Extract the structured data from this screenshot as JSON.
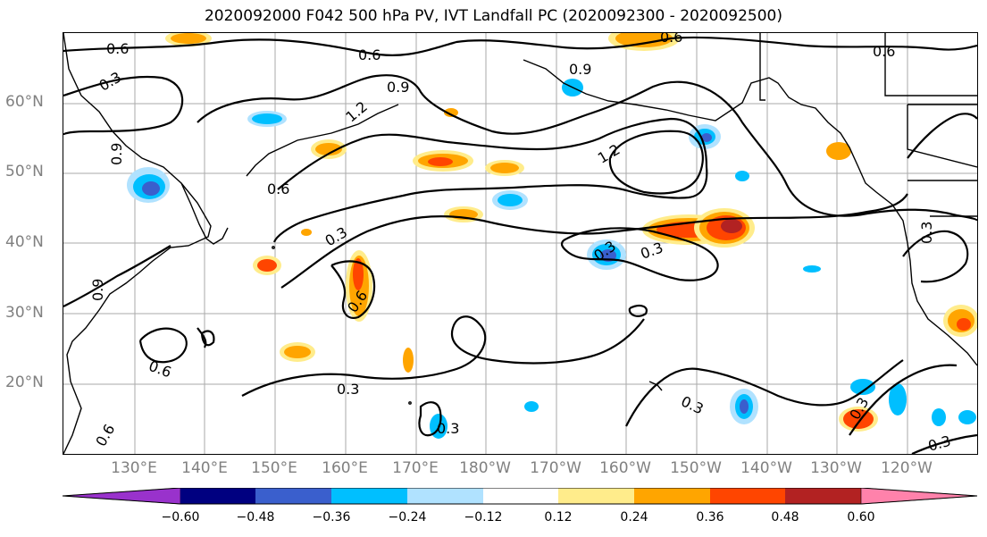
{
  "title": "2020092000 F042 500 hPa PV, IVT Landfall PC (2020092300 - 2020092500)",
  "map": {
    "lat_labels": [
      "60°N",
      "50°N",
      "40°N",
      "30°N",
      "20°N"
    ],
    "lon_labels": [
      "130°E",
      "140°E",
      "150°E",
      "160°E",
      "170°E",
      "180°W",
      "170°W",
      "160°W",
      "150°W",
      "140°W",
      "130°W",
      "120°W"
    ],
    "contour_labels": [
      "0.6",
      "0.3",
      "0.6",
      "0.9",
      "0.9",
      "1.2",
      "1.2",
      "0.6",
      "0.3",
      "0.3",
      "0.3",
      "0.6",
      "0.3",
      "0.3",
      "0.3",
      "0.6",
      "0.3",
      "0.3",
      "0.6",
      "0.6",
      "0.9",
      "0.9",
      "0.3",
      "0.6"
    ],
    "tick_color": "#808080"
  },
  "colorbar": {
    "ticks": [
      "−0.60",
      "−0.48",
      "−0.36",
      "−0.24",
      "−0.12",
      "0.12",
      "0.24",
      "0.36",
      "0.48",
      "0.60"
    ],
    "colors": [
      "#9932cc",
      "#000080",
      "#3a5fcd",
      "#00bfff",
      "#b0e2ff",
      "#ffffff",
      "#ffec8b",
      "#ffa500",
      "#ff4500",
      "#b22222",
      "#ff82ab"
    ]
  }
}
